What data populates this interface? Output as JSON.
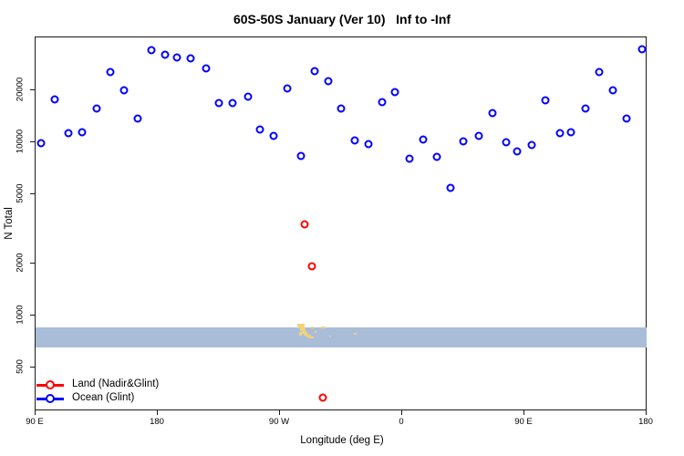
{
  "title": "60S-50S January (Ver 10)   Inf to -Inf",
  "colors": {
    "land_series": "#ff0000",
    "ocean_series": "#0000ff",
    "lat_band": "#a9bdd9",
    "land_map": "#f2d379",
    "axis": "#1a1a1a"
  },
  "chart_data": {
    "type": "scatter",
    "title": "60S-50S January (Ver 10)   Inf to -Inf",
    "xlabel": "Longitude (deg E)",
    "ylabel": "N Total",
    "x_scale": "linear-wrapped-longitude",
    "y_scale": "log10",
    "xlim": [
      90,
      540
    ],
    "ylim": [
      280,
      40000
    ],
    "grid": false,
    "x_ticks": [
      {
        "pos": 90,
        "label": "90 E"
      },
      {
        "pos": 180,
        "label": "180"
      },
      {
        "pos": 270,
        "label": "90 W"
      },
      {
        "pos": 360,
        "label": "0"
      },
      {
        "pos": 450,
        "label": "90 E"
      },
      {
        "pos": 540,
        "label": "180"
      }
    ],
    "y_ticks": [
      {
        "value": 500,
        "label": "500"
      },
      {
        "value": 1000,
        "label": "1000"
      },
      {
        "value": 2000,
        "label": "2000"
      },
      {
        "value": 5000,
        "label": "5000"
      },
      {
        "value": 10000,
        "label": "10000"
      },
      {
        "value": 20000,
        "label": "20000"
      }
    ],
    "latitude_band_overlay": {
      "value_from": 645,
      "value_to": 845
    },
    "legend": {
      "position": "bottom-left"
    },
    "series": [
      {
        "name": "Land (Nadir&Glint)",
        "color": "#ff0000",
        "points": [
          [
            289,
            3300
          ],
          [
            294,
            1900
          ],
          [
            302,
            330
          ]
        ]
      },
      {
        "name": "Ocean (Glint)",
        "color": "#0000ff",
        "points": [
          [
            95,
            9800
          ],
          [
            105,
            17500
          ],
          [
            115,
            11200
          ],
          [
            125,
            11300
          ],
          [
            136,
            15500
          ],
          [
            146,
            25000
          ],
          [
            156,
            19600
          ],
          [
            166,
            13500
          ],
          [
            176,
            33600
          ],
          [
            186,
            31600
          ],
          [
            195,
            30600
          ],
          [
            205,
            30100
          ],
          [
            216,
            26400
          ],
          [
            226,
            16700
          ],
          [
            236,
            16700
          ],
          [
            247,
            18200
          ],
          [
            256,
            11700
          ],
          [
            266,
            10800
          ],
          [
            276,
            20200
          ],
          [
            286,
            8200
          ],
          [
            296,
            25400
          ],
          [
            306,
            22200
          ],
          [
            316,
            15400
          ],
          [
            326,
            10100
          ],
          [
            336,
            9600
          ],
          [
            346,
            16900
          ],
          [
            355,
            19300
          ],
          [
            366,
            7900
          ],
          [
            376,
            10200
          ],
          [
            386,
            8100
          ],
          [
            396,
            5400
          ],
          [
            406,
            10000
          ],
          [
            417,
            10800
          ],
          [
            427,
            14500
          ],
          [
            437,
            9900
          ],
          [
            445,
            8700
          ],
          [
            456,
            9500
          ],
          [
            466,
            17300
          ],
          [
            477,
            11200
          ],
          [
            485,
            11300
          ],
          [
            496,
            15500
          ],
          [
            506,
            25000
          ],
          [
            516,
            19800
          ],
          [
            526,
            13500
          ],
          [
            537,
            34000
          ]
        ]
      }
    ]
  },
  "map_land_rects": [
    [
      326,
      355,
      8,
      3
    ],
    [
      327,
      357,
      7,
      3
    ],
    [
      329,
      360,
      6,
      3
    ],
    [
      331,
      363,
      5,
      3
    ],
    [
      333,
      365,
      5,
      3
    ],
    [
      336,
      367,
      5,
      3
    ],
    [
      339,
      369,
      5,
      2
    ],
    [
      328,
      364,
      3,
      4
    ],
    [
      341,
      358,
      3,
      2
    ],
    [
      345,
      363,
      2,
      2
    ],
    [
      352,
      358,
      5,
      2
    ],
    [
      361,
      368,
      2,
      1
    ],
    [
      388,
      365,
      3,
      2
    ]
  ]
}
